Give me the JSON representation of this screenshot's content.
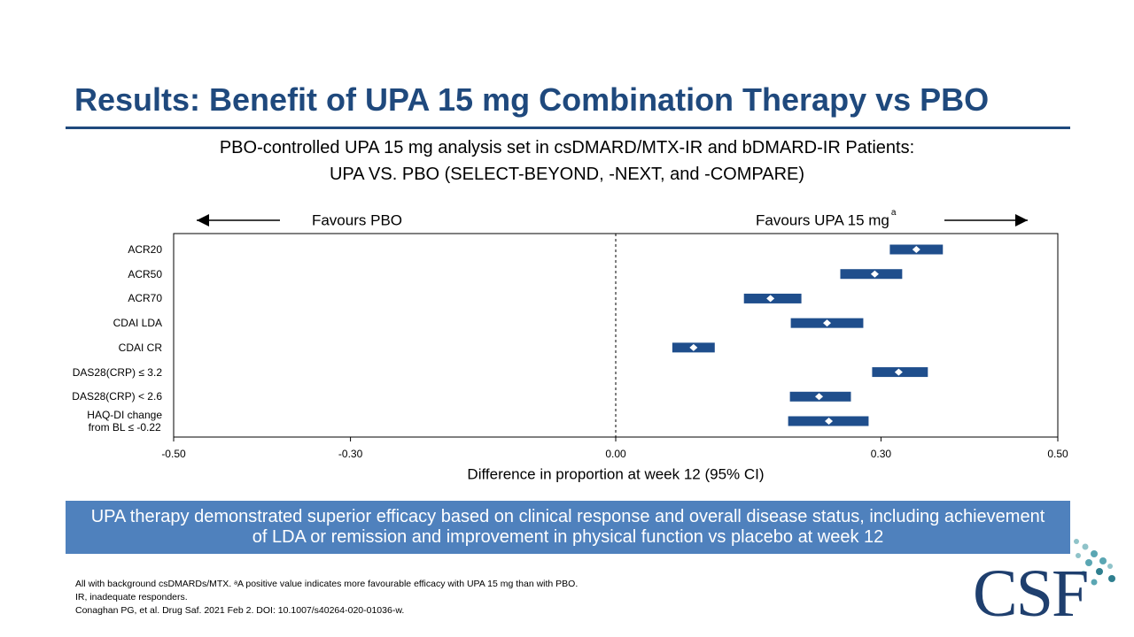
{
  "title": "Results: Benefit of UPA 15 mg Combination Therapy vs PBO",
  "subtitle": [
    "PBO-controlled UPA 15 mg analysis set in csDMARD/MTX-IR and bDMARD-IR Patients:",
    "UPA VS. PBO (SELECT-BEYOND, -NEXT, and -COMPARE)"
  ],
  "chart_data": {
    "type": "forest",
    "categories": [
      "ACR20",
      "ACR50",
      "ACR70",
      "CDAI LDA",
      "CDAI CR",
      "DAS28(CRP) ≤ 3.2",
      "DAS28(CRP) < 2.6",
      "HAQ-DI change\nfrom BL ≤ -0.22"
    ],
    "estimates": [
      0.34,
      0.293,
      0.175,
      0.239,
      0.088,
      0.32,
      0.23,
      0.241
    ],
    "lower": [
      0.31,
      0.254,
      0.145,
      0.198,
      0.064,
      0.29,
      0.197,
      0.195
    ],
    "upper": [
      0.37,
      0.324,
      0.21,
      0.28,
      0.112,
      0.353,
      0.266,
      0.286
    ],
    "color": "#1f4e8c",
    "xlim": [
      -0.5,
      0.5
    ],
    "xticks": [
      {
        "value": -0.5,
        "label": "-0.50"
      },
      {
        "value": -0.3,
        "label": "-0.30"
      },
      {
        "value": 0,
        "label": "0.00"
      },
      {
        "value": 0.3,
        "label": "0.30"
      },
      {
        "value": 0.5,
        "label": "0.50"
      }
    ],
    "xlabel": "Difference in proportion at week 12 (95% CI)",
    "left_label": "Favours PBO",
    "right_label": "Favours UPA 15 mg",
    "right_label_note": "a"
  },
  "summary": "UPA therapy demonstrated superior efficacy based on clinical response and overall disease status, including achievement of LDA or remission and improvement in physical function vs placebo at week 12",
  "footnotes": [
    "All with background csDMARDs/MTX. ᵃA positive value indicates more favourable efficacy with UPA 15 mg than with PBO.",
    "IR, inadequate responders.",
    "Conaghan PG, et al. Drug Saf. 2021 Feb 2. DOI: 10.1007/s40264-020-01036-w."
  ],
  "logo": "CSF"
}
